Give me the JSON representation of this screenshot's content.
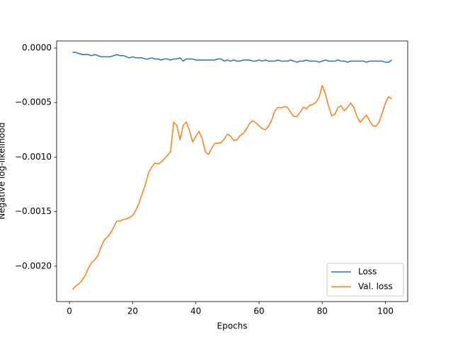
{
  "chart_data": {
    "type": "line",
    "x_label": "Epochs",
    "y_label": "Negative log-likelihood",
    "x": [
      1,
      2,
      3,
      4,
      5,
      6,
      7,
      8,
      9,
      10,
      11,
      12,
      13,
      14,
      15,
      16,
      17,
      18,
      19,
      20,
      21,
      22,
      23,
      24,
      25,
      26,
      27,
      28,
      29,
      30,
      31,
      32,
      33,
      34,
      35,
      36,
      37,
      38,
      39,
      40,
      41,
      42,
      43,
      44,
      45,
      46,
      47,
      48,
      49,
      50,
      51,
      52,
      53,
      54,
      55,
      56,
      57,
      58,
      59,
      60,
      61,
      62,
      63,
      64,
      65,
      66,
      67,
      68,
      69,
      70,
      71,
      72,
      73,
      74,
      75,
      76,
      77,
      78,
      79,
      80,
      81,
      82,
      83,
      84,
      85,
      86,
      87,
      88,
      89,
      90,
      91,
      92,
      93,
      94,
      95,
      96,
      97,
      98,
      99,
      100,
      101,
      102
    ],
    "series": [
      {
        "name": "Loss",
        "color": "#1f77b4",
        "values": [
          -4e-05,
          -4e-05,
          -5e-05,
          -6e-05,
          -6e-05,
          -6e-05,
          -7e-05,
          -6e-05,
          -7e-05,
          -8e-05,
          -8e-05,
          -8e-05,
          -8e-05,
          -7e-05,
          -6e-05,
          -7e-05,
          -7e-05,
          -8e-05,
          -9e-05,
          -8e-05,
          -9e-05,
          -9e-05,
          -9e-05,
          -0.0001,
          -0.0001,
          -9e-05,
          -0.0001,
          -0.0001,
          -0.00011,
          -0.0001,
          -0.0001,
          -0.00011,
          -0.0001,
          -0.0001,
          -9e-05,
          -0.00012,
          -0.0001,
          -0.0001,
          -0.0001,
          -0.00011,
          -0.00011,
          -0.00011,
          -0.00011,
          -0.00011,
          -0.00011,
          -0.00011,
          -0.0001,
          -0.0001,
          -0.00012,
          -0.00011,
          -0.00012,
          -0.00011,
          -0.00012,
          -0.00012,
          -0.00011,
          -0.00011,
          -0.00011,
          -0.00012,
          -0.00012,
          -0.00011,
          -0.00012,
          -0.00011,
          -0.00012,
          -0.00012,
          -0.00012,
          -0.00011,
          -0.00012,
          -0.00012,
          -0.00012,
          -0.00011,
          -0.00012,
          -0.00013,
          -0.00012,
          -0.00012,
          -0.00011,
          -0.00012,
          -0.00012,
          -0.00012,
          -0.00013,
          -0.00012,
          -0.00011,
          -0.00012,
          -0.00012,
          -0.00012,
          -0.00011,
          -0.00012,
          -0.00012,
          -0.00013,
          -0.00012,
          -0.00012,
          -0.00012,
          -0.00012,
          -0.00012,
          -0.00013,
          -0.00012,
          -0.00012,
          -0.00012,
          -0.00012,
          -0.00012,
          -0.00013,
          -0.00013,
          -0.00011
        ]
      },
      {
        "name": "Val. loss",
        "color": "#ff7f0e",
        "values": [
          -0.002214,
          -0.0021812,
          -0.0021618,
          -0.0021294,
          -0.0020841,
          -0.0020194,
          -0.0019676,
          -0.0019417,
          -0.0019029,
          -0.0018252,
          -0.0017605,
          -0.0017346,
          -0.0016958,
          -0.001644,
          -0.0015858,
          -0.0015858,
          -0.0015728,
          -0.0015663,
          -0.0015534,
          -0.001534,
          -0.0014887,
          -0.0014239,
          -0.0013398,
          -0.0012557,
          -0.0011456,
          -0.0010939,
          -0.001055,
          -0.0010615,
          -0.0010485,
          -0.0010162,
          -0.0009838,
          -0.0009515,
          -0.0006796,
          -0.000712,
          -0.0008414,
          -0.000712,
          -0.0006796,
          -0.0007573,
          -0.0008608,
          -0.0008091,
          -0.0007638,
          -0.0008285,
          -0.0009515,
          -0.0009773,
          -0.0009191,
          -0.0008738,
          -0.0008738,
          -0.0008673,
          -0.000835,
          -0.0007896,
          -0.0008091,
          -0.0008479,
          -0.0008414,
          -0.0008026,
          -0.0007832,
          -0.0007443,
          -0.0006926,
          -0.0006667,
          -0.0006861,
          -0.000712,
          -0.0007379,
          -0.0007508,
          -0.0007184,
          -0.0006602,
          -0.0005761,
          -0.0005437,
          -0.0005502,
          -0.0005372,
          -0.0005437,
          -0.000589,
          -0.0006278,
          -0.0006278,
          -0.000589,
          -0.0005437,
          -0.0005566,
          -0.0005243,
          -0.0005178,
          -0.0004984,
          -0.0004531,
          -0.000343,
          -0.0004207,
          -0.0005307,
          -0.0006214,
          -0.0006084,
          -0.0005437,
          -0.0005307,
          -0.0005761,
          -0.0005437,
          -0.0005049,
          -0.0005437,
          -0.0006278,
          -0.0006796,
          -0.0006472,
          -0.0006149,
          -0.0006667,
          -0.000712,
          -0.0007184,
          -0.0006796,
          -0.0005955,
          -0.0005049,
          -0.0004466,
          -0.000466
        ]
      }
    ],
    "xlim": [
      -4.05,
      107.05
    ],
    "ylim": [
      -0.002324,
      6.47e-05
    ],
    "xticks": [
      0,
      20,
      40,
      60,
      80,
      100
    ],
    "yticks": [
      {
        "value": 0,
        "label": "0.0000"
      },
      {
        "value": -0.0005,
        "label": "−0.0005"
      },
      {
        "value": -0.001,
        "label": "−0.0010"
      },
      {
        "value": -0.0015,
        "label": "−0.0015"
      },
      {
        "value": -0.002,
        "label": "−0.0020"
      }
    ],
    "legend": "lower right"
  }
}
